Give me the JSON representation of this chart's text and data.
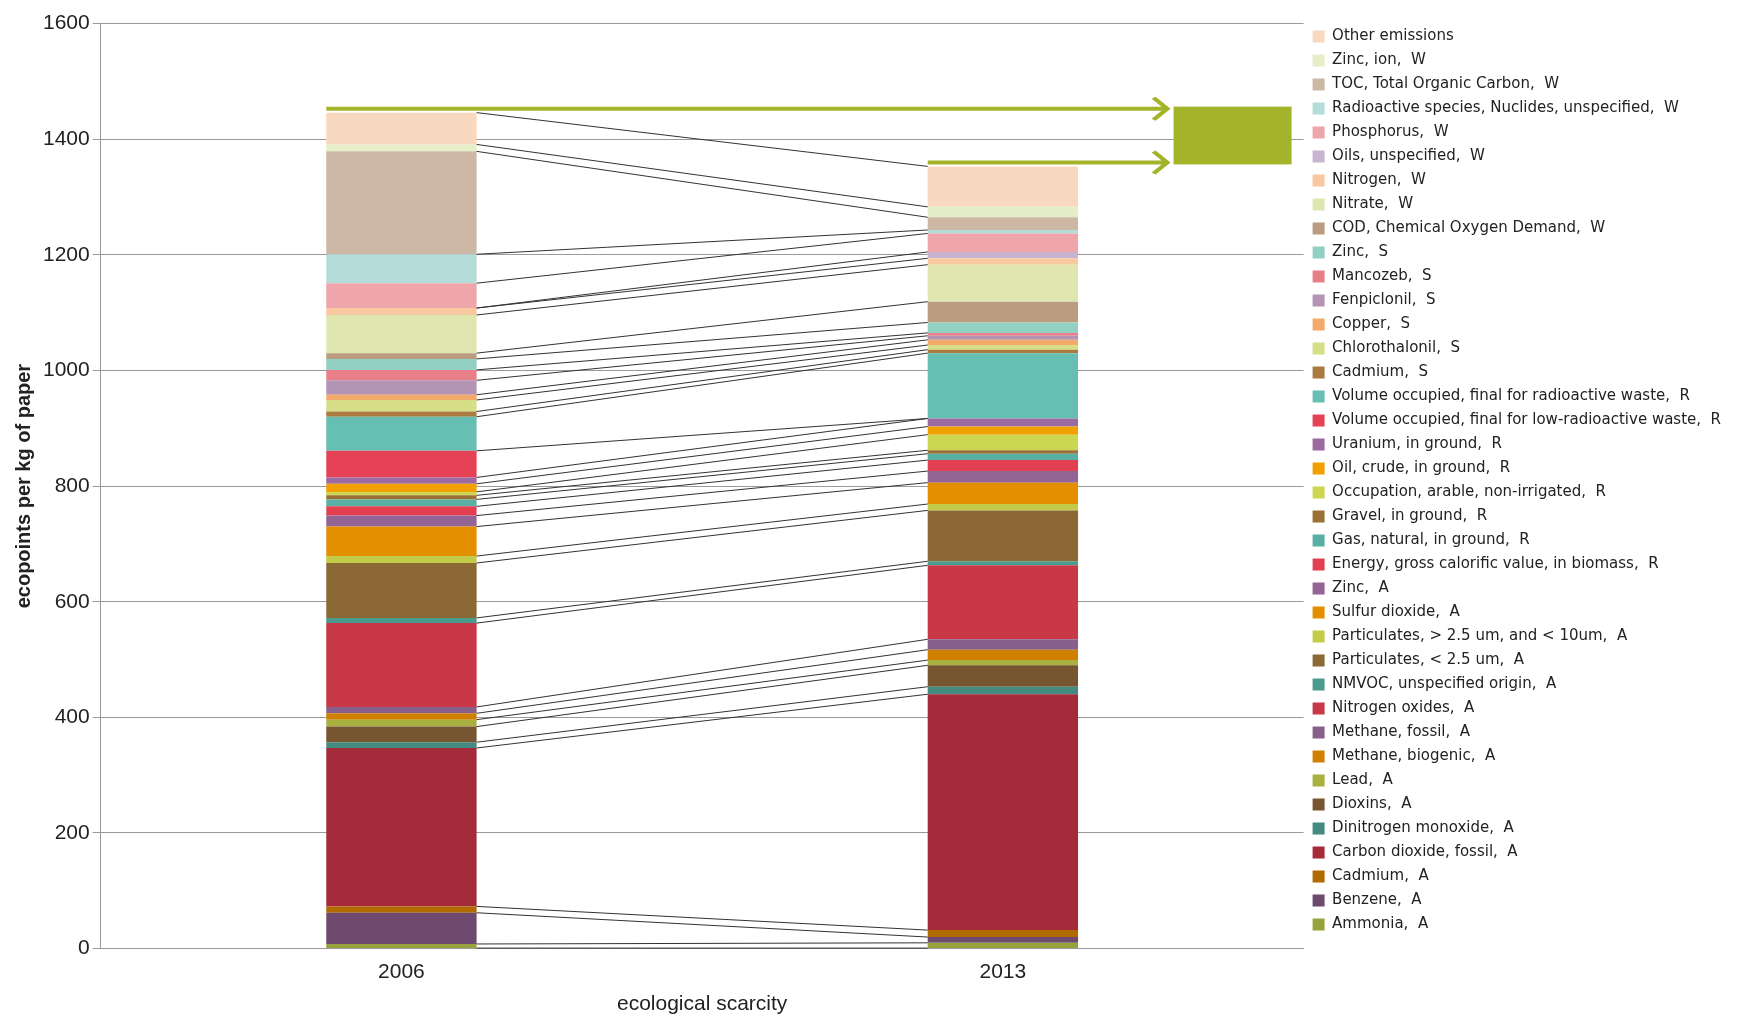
{
  "chart_data": {
    "type": "bar",
    "stacked": true,
    "xlabel": "ecological scarcity",
    "ylabel": "ecopoints per kg of paper",
    "categories": [
      "2006",
      "2013"
    ],
    "ylim": [
      0,
      1600
    ],
    "yticks": [
      0,
      200,
      400,
      600,
      800,
      1000,
      1200,
      1400,
      1600
    ],
    "grid": "y",
    "legend": "right",
    "series": [
      {
        "name": "Ammonia,  A",
        "color": "#98a23c",
        "values": [
          8,
          10
        ]
      },
      {
        "name": "Benzene,  A",
        "color": "#6e4a6e",
        "values": [
          54,
          10
        ]
      },
      {
        "name": "Cadmium,  A",
        "color": "#b06a00",
        "values": [
          11,
          12
        ]
      },
      {
        "name": "Carbon dioxide, fossil,  A",
        "color": "#a52a3a",
        "values": [
          274,
          408
        ]
      },
      {
        "name": "Dinitrogen monoxide,  A",
        "color": "#458a80",
        "values": [
          10,
          13
        ]
      },
      {
        "name": "Dioxins,  A",
        "color": "#765530",
        "values": [
          27,
          37
        ]
      },
      {
        "name": "Lead,  A",
        "color": "#a8b040",
        "values": [
          12,
          9
        ]
      },
      {
        "name": "Methane, biogenic,  A",
        "color": "#d08000",
        "values": [
          11,
          18
        ]
      },
      {
        "name": "Methane, fossil,  A",
        "color": "#86608a",
        "values": [
          11,
          18
        ]
      },
      {
        "name": "Nitrogen oxides,  A",
        "color": "#c83846",
        "values": [
          145,
          128
        ]
      },
      {
        "name": "NMVOC, unspecified origin,  A",
        "color": "#4a9a8e",
        "values": [
          9,
          7
        ]
      },
      {
        "name": "Particulates, < 2.5 um,  A",
        "color": "#8c6934",
        "values": [
          95,
          88
        ]
      },
      {
        "name": "Particulates, > 2.5 um, and < 10um,  A",
        "color": "#c2cc48",
        "values": [
          12,
          11
        ]
      },
      {
        "name": "Sulfur dioxide,  A",
        "color": "#e38f00",
        "values": [
          51,
          37
        ]
      },
      {
        "name": "Zinc,  A",
        "color": "#946494",
        "values": [
          19,
          20
        ]
      },
      {
        "name": "Energy, gross calorific value, in biomass,  R",
        "color": "#e24050",
        "values": [
          16,
          19
        ]
      },
      {
        "name": "Gas, natural, in ground,  R",
        "color": "#58b0a4",
        "values": [
          12,
          11
        ]
      },
      {
        "name": "Gravel, in ground,  R",
        "color": "#9a7034",
        "values": [
          7,
          6
        ]
      },
      {
        "name": "Occupation, arable, non-irrigated,  R",
        "color": "#ccd650",
        "values": [
          6,
          27
        ]
      },
      {
        "name": "Oil, crude, in ground,  R",
        "color": "#f2a000",
        "values": [
          14,
          14
        ]
      },
      {
        "name": "Uranium, in ground,  R",
        "color": "#9a6aa0",
        "values": [
          11,
          14
        ]
      },
      {
        "name": "Volume occupied, final for low-radioactive waste,  R",
        "color": "#e64256",
        "values": [
          46,
          0
        ]
      },
      {
        "name": "Volume occupied, final for radioactive waste,  R",
        "color": "#66bfb2",
        "values": [
          59,
          113
        ]
      },
      {
        "name": "Cadmium,  S",
        "color": "#aa7a3e",
        "values": [
          9,
          6
        ]
      },
      {
        "name": "Chlorothalonil,  S",
        "color": "#d6de88",
        "values": [
          20,
          8
        ]
      },
      {
        "name": "Copper,  S",
        "color": "#f2aa6a",
        "values": [
          9,
          9
        ]
      },
      {
        "name": "Fenpiclonil,  S",
        "color": "#b494b4",
        "values": [
          25,
          7
        ]
      },
      {
        "name": "Mancozeb,  S",
        "color": "#e87f88",
        "values": [
          18,
          5
        ]
      },
      {
        "name": "Zinc,  S",
        "color": "#92d0c4",
        "values": [
          19,
          18
        ]
      },
      {
        "name": "COD, Chemical Oxygen Demand,  W",
        "color": "#bc9c80",
        "values": [
          10,
          36
        ]
      },
      {
        "name": "Nitrate,  W",
        "color": "#e0e6b0",
        "values": [
          66,
          64
        ]
      },
      {
        "name": "Nitrogen,  W",
        "color": "#f8c8a0",
        "values": [
          12,
          11
        ]
      },
      {
        "name": "Oils, unspecified,  W",
        "color": "#c8b4d0",
        "values": [
          0,
          11
        ]
      },
      {
        "name": "Phosphorus,  W",
        "color": "#eea6aa",
        "values": [
          43,
          32
        ]
      },
      {
        "name": "Radioactive species, Nuclides, unspecified,  W",
        "color": "#b4dcd8",
        "values": [
          50,
          6
        ]
      },
      {
        "name": "TOC, Total Organic Carbon,  W",
        "color": "#cdb8a6",
        "values": [
          178,
          22
        ]
      },
      {
        "name": "Zinc, ion,  W",
        "color": "#e6eec8",
        "values": [
          12,
          18
        ]
      },
      {
        "name": "Other emissions",
        "color": "#f9d8c0",
        "values": [
          55,
          70
        ]
      }
    ]
  }
}
